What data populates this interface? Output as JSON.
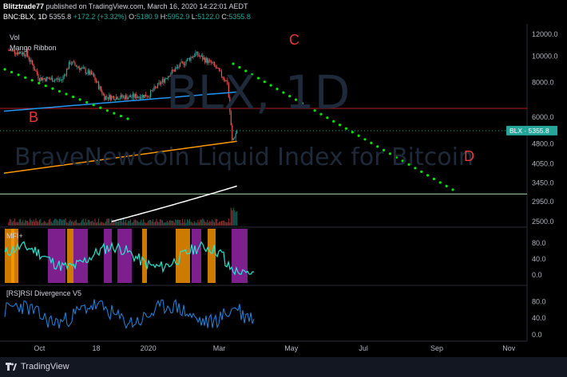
{
  "header": {
    "author": "Blitztrade77",
    "published_text": "published on TradingView.com, March 16, 2020 14:22:01 AEDT",
    "symbol": "BNC:BLX, 1D",
    "last": "5355.8",
    "change": "+172.2 (+3.32%)",
    "o_label": "O:",
    "o": "5180.9",
    "h_label": "H:",
    "h": "5952.9",
    "l_label": "L:",
    "l": "5122.0",
    "c_label": "C:",
    "c": "5355.8"
  },
  "overlays": {
    "vol_label": "Vol",
    "ribbon_label": "Mango Ribbon",
    "watermark_symbol": "BLX, 1D",
    "watermark_name": "BraveNewCoin Liquid Index for Bitcoin",
    "mfi_label": "MFI+",
    "rsi_label": "[RS]RSI Divergence V5"
  },
  "annotations": [
    {
      "text": "B"
    },
    {
      "text": "C"
    },
    {
      "text": "D"
    }
  ],
  "footer": {
    "brand": "TradingView"
  },
  "colors": {
    "up": "#26a69a",
    "down": "#ef5350",
    "ribbon_blue": "#2196f3",
    "ribbon_orange": "#ff9800",
    "ribbon_white": "#ffffff",
    "trend_green": "#00e600",
    "red_line": "#b71c1c",
    "green_line": "#a5d6a7",
    "annotation": "#e53935",
    "mfi_purple": "#9c27b0",
    "mfi_orange": "#ff9800",
    "mfi_cyan": "#26e6d2",
    "rsi_blue": "#1e88e5"
  },
  "chart_data": {
    "type": "candlestick",
    "x_ticks": [
      "Oct",
      "18",
      "2020",
      "Mar",
      "May",
      "Jul",
      "Sep",
      "Nov"
    ],
    "price_axis": {
      "scale": "log",
      "ticks": [
        "12000.0",
        "10000.0",
        "8000.0",
        "6000.0",
        "4800.0",
        "4050.0",
        "3450.0",
        "2950.0",
        "2500.0"
      ],
      "last_label": "BLX · 5355.8",
      "last_value": 5355.8
    },
    "price_series_approx": [
      {
        "date": "2019-09-05",
        "close": 10500
      },
      {
        "date": "2019-09-20",
        "close": 10200
      },
      {
        "date": "2019-10-01",
        "close": 8300
      },
      {
        "date": "2019-10-20",
        "close": 8200
      },
      {
        "date": "2019-10-27",
        "close": 9500
      },
      {
        "date": "2019-11-15",
        "close": 8500
      },
      {
        "date": "2019-11-25",
        "close": 7100
      },
      {
        "date": "2019-12-15",
        "close": 7100
      },
      {
        "date": "2020-01-01",
        "close": 7200
      },
      {
        "date": "2020-01-20",
        "close": 8700
      },
      {
        "date": "2020-02-10",
        "close": 10200
      },
      {
        "date": "2020-02-25",
        "close": 9300
      },
      {
        "date": "2020-03-08",
        "close": 8000
      },
      {
        "date": "2020-03-12",
        "close": 4900
      },
      {
        "date": "2020-03-16",
        "close": 5355.8
      }
    ],
    "ribbon_lines_approx": [
      {
        "name": "",
        "color": "blue",
        "values": [
          [
            "2019-09-01",
            6300
          ],
          [
            "2020-03-16",
            7400
          ]
        ]
      },
      {
        "name": "",
        "color": "orange",
        "values": [
          [
            "2019-09-01",
            3750
          ],
          [
            "2020-03-16",
            4900
          ]
        ]
      },
      {
        "name": "",
        "color": "white",
        "values": [
          [
            "2019-12-01",
            2500
          ],
          [
            "2020-03-16",
            3300
          ]
        ]
      }
    ],
    "mfi_axis": {
      "ticks": [
        "80.0",
        "40.0",
        "0.0"
      ]
    },
    "rsi_axis": {
      "ticks": [
        "80.0",
        "40.0",
        "0.0"
      ]
    }
  }
}
